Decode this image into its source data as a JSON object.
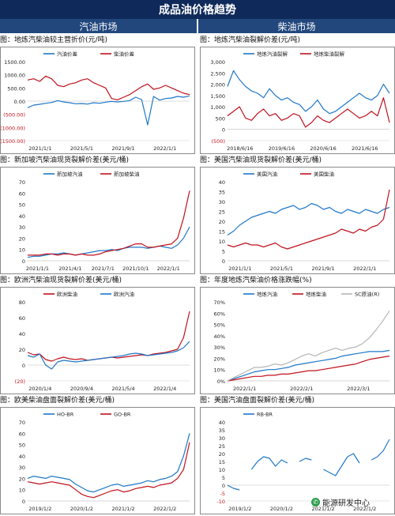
{
  "header": {
    "title": "成品油价格趋势",
    "left_section": "汽油市场",
    "right_section": "柴油市场"
  },
  "watermark": {
    "text": "能源研发中心",
    "icon": "wechat-icon"
  },
  "chart_data": [
    {
      "id": "c1",
      "type": "line",
      "panel_title": "图：地炼汽柴油较主营折价(元/吨)",
      "xticks": [
        "2021/1/1",
        "2021/5/1",
        "2021/9/1",
        "2022/1/1"
      ],
      "ylim": [
        -1500,
        1500
      ],
      "yticks": [
        {
          "v": 1500,
          "label": "1500.00"
        },
        {
          "v": 1000,
          "label": "1000.00"
        },
        {
          "v": 500,
          "label": "500.00"
        },
        {
          "v": 0,
          "label": "0.00"
        },
        {
          "v": -500,
          "label": "(500.00)"
        },
        {
          "v": -1000,
          "label": "(1000.00)"
        },
        {
          "v": -1500,
          "label": "(1500.00)"
        }
      ],
      "legend_position": "top",
      "series": [
        {
          "name": "汽油价差",
          "color": "#1f77c8",
          "values": [
            -250,
            -150,
            -120,
            -80,
            -50,
            20,
            -30,
            -60,
            -100,
            -90,
            -110,
            -60,
            -80,
            -40,
            -10,
            -30,
            -10,
            20,
            150,
            60,
            -900,
            180,
            40,
            100,
            120,
            180,
            150,
            200
          ]
        },
        {
          "name": "柴油价差",
          "color": "#c0121d",
          "values": [
            800,
            850,
            750,
            950,
            850,
            600,
            550,
            650,
            700,
            800,
            850,
            700,
            600,
            500,
            100,
            50,
            150,
            250,
            400,
            550,
            650,
            450,
            500,
            600,
            500,
            400,
            300,
            250
          ]
        }
      ]
    },
    {
      "id": "c2",
      "type": "line",
      "panel_title": "图：地炼汽柴油裂解价差(元/吨)",
      "xticks": [
        "2018/6/16",
        "2019/6/16",
        "2020/6/16",
        "2021/6/16"
      ],
      "ylim": [
        -500,
        3000
      ],
      "yticks": [
        {
          "v": 3000,
          "label": "3,000"
        },
        {
          "v": 2500,
          "label": "2,500"
        },
        {
          "v": 2000,
          "label": "2,000"
        },
        {
          "v": 1500,
          "label": "1,500"
        },
        {
          "v": 1000,
          "label": "1,000"
        },
        {
          "v": 500,
          "label": "500"
        },
        {
          "v": 0,
          "label": "0"
        },
        {
          "v": -500,
          "label": "(500)"
        }
      ],
      "legend_position": "top",
      "series": [
        {
          "name": "地炼汽油裂解",
          "color": "#1f77c8",
          "values": [
            1900,
            2600,
            2200,
            1900,
            1700,
            1600,
            1400,
            1800,
            1500,
            1300,
            1400,
            1200,
            1100,
            800,
            1000,
            1300,
            900,
            700,
            800,
            1000,
            1200,
            1400,
            1600,
            1400,
            1300,
            1500,
            2000,
            1600
          ]
        },
        {
          "name": "地炼柴油裂解",
          "color": "#c0121d",
          "values": [
            600,
            800,
            1000,
            500,
            400,
            700,
            900,
            600,
            700,
            400,
            500,
            700,
            600,
            100,
            300,
            600,
            400,
            300,
            500,
            700,
            900,
            700,
            500,
            600,
            800,
            600,
            1400,
            300
          ]
        }
      ]
    },
    {
      "id": "c3",
      "type": "line",
      "panel_title": "图：新加坡汽柴油现货裂解价差(美元/桶)",
      "xticks": [
        "2021/1/1",
        "2021/4/1",
        "2021/7/1",
        "2021/10/1",
        "2022/1/1"
      ],
      "ylim": [
        0,
        70
      ],
      "yticks": [
        {
          "v": 70,
          "label": "70"
        },
        {
          "v": 60,
          "label": "60"
        },
        {
          "v": 50,
          "label": "50"
        },
        {
          "v": 40,
          "label": "40"
        },
        {
          "v": 30,
          "label": "30"
        },
        {
          "v": 20,
          "label": "20"
        },
        {
          "v": 10,
          "label": "10"
        },
        {
          "v": 0,
          "label": "0"
        }
      ],
      "legend_position": "top",
      "series": [
        {
          "name": "新加坡汽油",
          "color": "#1f77c8",
          "values": [
            3,
            4,
            4,
            5,
            6,
            6,
            7,
            6,
            5,
            6,
            7,
            8,
            9,
            9,
            10,
            9,
            11,
            12,
            12,
            12,
            11,
            12,
            13,
            12,
            11,
            14,
            20,
            30
          ]
        },
        {
          "name": "新加坡柴油",
          "color": "#c0121d",
          "values": [
            5,
            5,
            5,
            6,
            6,
            5,
            6,
            6,
            5,
            6,
            5,
            5,
            6,
            8,
            9,
            10,
            11,
            13,
            15,
            15,
            12,
            12,
            13,
            14,
            15,
            20,
            38,
            62
          ]
        }
      ]
    },
    {
      "id": "c4",
      "type": "line",
      "panel_title": "图：美国汽柴油现货裂解价差(美元/桶)",
      "xticks": [
        "2021/1/1",
        "2021/5/1",
        "2021/9/1",
        "2022/1/1"
      ],
      "ylim": [
        0,
        40
      ],
      "yticks": [
        {
          "v": 40,
          "label": "40"
        },
        {
          "v": 35,
          "label": "35"
        },
        {
          "v": 30,
          "label": "30"
        },
        {
          "v": 25,
          "label": "25"
        },
        {
          "v": 20,
          "label": "20"
        },
        {
          "v": 15,
          "label": "15"
        },
        {
          "v": 10,
          "label": "10"
        },
        {
          "v": 5,
          "label": "5"
        },
        {
          "v": 0,
          "label": "0"
        }
      ],
      "legend_position": "top",
      "series": [
        {
          "name": "美国汽油",
          "color": "#1f77c8",
          "values": [
            13,
            15,
            18,
            20,
            22,
            23,
            24,
            25,
            24,
            26,
            27,
            28,
            26,
            27,
            29,
            28,
            26,
            27,
            25,
            24,
            26,
            25,
            24,
            26,
            25,
            24,
            26,
            27
          ]
        },
        {
          "name": "美国柴油",
          "color": "#c0121d",
          "values": [
            8,
            7,
            8,
            9,
            8,
            8,
            7,
            8,
            9,
            7,
            6,
            7,
            8,
            9,
            10,
            11,
            12,
            13,
            14,
            16,
            15,
            14,
            16,
            15,
            17,
            18,
            21,
            36
          ]
        }
      ]
    },
    {
      "id": "c5",
      "type": "line",
      "panel_title": "图：欧洲汽柴油现货裂解价差(美元/桶)",
      "xticks": [
        "2020/1/4",
        "2020/9/4",
        "2021/5/4",
        "2022/1/4"
      ],
      "ylim": [
        -20,
        80
      ],
      "yticks": [
        {
          "v": 80,
          "label": "80"
        },
        {
          "v": 60,
          "label": "60"
        },
        {
          "v": 40,
          "label": "40"
        },
        {
          "v": 20,
          "label": "20"
        },
        {
          "v": 0,
          "label": "0"
        },
        {
          "v": -20,
          "label": "(20)"
        }
      ],
      "legend_position": "top",
      "series": [
        {
          "name": "欧洲柴油",
          "color": "#c0121d",
          "values": [
            16,
            13,
            14,
            7,
            5,
            8,
            10,
            8,
            7,
            8,
            6,
            7,
            8,
            9,
            10,
            9,
            10,
            11,
            12,
            13,
            12,
            14,
            15,
            16,
            18,
            20,
            35,
            68
          ]
        },
        {
          "name": "欧洲汽油",
          "color": "#1f77c8",
          "values": [
            12,
            10,
            14,
            0,
            -5,
            4,
            6,
            5,
            4,
            5,
            6,
            7,
            8,
            9,
            10,
            11,
            12,
            14,
            15,
            14,
            12,
            13,
            14,
            15,
            16,
            18,
            22,
            30
          ]
        }
      ]
    },
    {
      "id": "c6",
      "type": "line",
      "panel_title": "图：年度地炼汽柴油价格涨跌幅(%)",
      "xticks": [
        "2022/1/1",
        "2022/2/1",
        "2022/3/1"
      ],
      "ylim": [
        0,
        70
      ],
      "ytick_suffix": "%",
      "yticks": [
        {
          "v": 70,
          "label": "70%"
        },
        {
          "v": 60,
          "label": "60%"
        },
        {
          "v": 50,
          "label": "50%"
        },
        {
          "v": 40,
          "label": "40%"
        },
        {
          "v": 30,
          "label": "30%"
        },
        {
          "v": 20,
          "label": "20%"
        },
        {
          "v": 10,
          "label": "10%"
        },
        {
          "v": 0,
          "label": "0%"
        }
      ],
      "legend_position": "top",
      "series": [
        {
          "name": "地炼汽油",
          "color": "#1f77c8",
          "values": [
            0,
            2,
            4,
            6,
            8,
            9,
            10,
            10,
            11,
            12,
            14,
            15,
            16,
            17,
            18,
            19,
            20,
            22,
            23,
            24,
            25,
            26,
            26,
            26,
            27
          ]
        },
        {
          "name": "地炼柴油",
          "color": "#c0121d",
          "values": [
            0,
            1,
            2,
            3,
            4,
            4,
            5,
            5,
            6,
            6,
            7,
            8,
            9,
            9,
            10,
            11,
            12,
            13,
            14,
            15,
            17,
            19,
            20,
            21,
            22
          ]
        },
        {
          "name": "SC原油(R)",
          "color": "#b5b5b5",
          "values": [
            0,
            3,
            6,
            9,
            12,
            12,
            13,
            15,
            14,
            16,
            19,
            22,
            24,
            22,
            25,
            27,
            29,
            27,
            29,
            30,
            33,
            38,
            45,
            53,
            62
          ]
        }
      ]
    },
    {
      "id": "c7",
      "type": "line",
      "panel_title": "图：欧美柴油盘面裂解价差(美元/桶)",
      "xticks": [
        "2019/1/2",
        "2020/1/2",
        "2021/1/2",
        "2022/1/2"
      ],
      "ylim": [
        0,
        70
      ],
      "yticks": [
        {
          "v": 70,
          "label": "70"
        },
        {
          "v": 60,
          "label": "60"
        },
        {
          "v": 50,
          "label": "50"
        },
        {
          "v": 40,
          "label": "40"
        },
        {
          "v": 30,
          "label": "30"
        },
        {
          "v": 20,
          "label": "20"
        },
        {
          "v": 10,
          "label": "10"
        },
        {
          "v": 0,
          "label": "0"
        }
      ],
      "legend_position": "top",
      "series": [
        {
          "name": "HO-BR",
          "color": "#1f77c8",
          "values": [
            20,
            22,
            21,
            20,
            22,
            21,
            20,
            19,
            15,
            12,
            9,
            8,
            10,
            12,
            14,
            15,
            13,
            14,
            15,
            16,
            18,
            17,
            19,
            20,
            22,
            26,
            40,
            60
          ]
        },
        {
          "name": "GO-BR",
          "color": "#c0121d",
          "values": [
            17,
            16,
            15,
            16,
            17,
            16,
            15,
            14,
            10,
            6,
            4,
            3,
            5,
            7,
            9,
            10,
            8,
            9,
            11,
            12,
            13,
            12,
            14,
            15,
            16,
            20,
            28,
            52
          ]
        }
      ]
    },
    {
      "id": "c8",
      "type": "line",
      "panel_title": "图：美国汽油盘面裂解价差(美元/桶)",
      "xticks": [
        "2019/1/2",
        "2020/1/2",
        "2021/1/2",
        "2022/1/2"
      ],
      "ylim": [
        -10,
        40
      ],
      "yticks": [
        {
          "v": 40,
          "label": "40"
        },
        {
          "v": 35,
          "label": "35"
        },
        {
          "v": 30,
          "label": "30"
        },
        {
          "v": 25,
          "label": "25"
        },
        {
          "v": 20,
          "label": "20"
        },
        {
          "v": 15,
          "label": "15"
        },
        {
          "v": 10,
          "label": "10"
        },
        {
          "v": 5,
          "label": "5"
        },
        {
          "v": 0,
          "label": "0"
        },
        {
          "v": -5,
          "label": "-5"
        },
        {
          "v": -10,
          "label": "-10"
        }
      ],
      "legend_position": "top",
      "series": [
        {
          "name": "RB-BR",
          "color": "#1f77c8",
          "values": [
            0,
            -2,
            -3,
            null,
            10,
            15,
            18,
            17,
            12,
            16,
            14,
            null,
            15,
            17,
            16,
            null,
            10,
            8,
            6,
            12,
            18,
            20,
            14,
            null,
            16,
            18,
            22,
            29
          ]
        }
      ]
    }
  ]
}
